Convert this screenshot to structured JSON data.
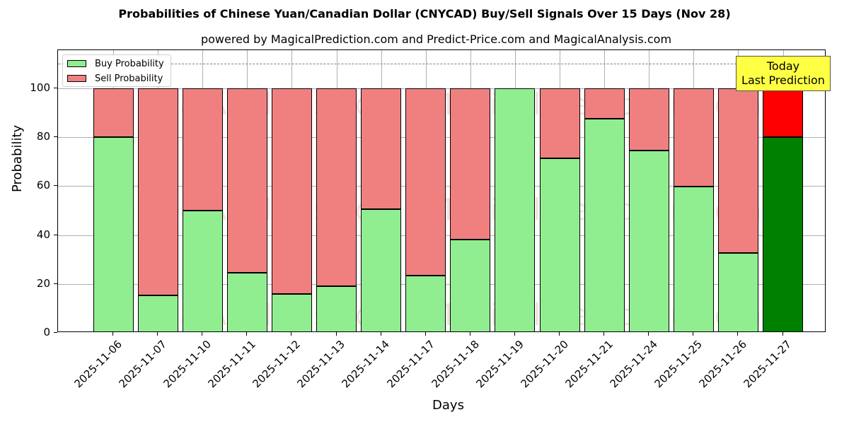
{
  "chart": {
    "title": "Probabilities of Chinese Yuan/Canadian Dollar (CNYCAD) Buy/Sell Signals Over 15 Days (Nov 28)",
    "subtitle": "powered by MagicalPrediction.com and Predict-Price.com and MagicalAnalysis.com",
    "xlabel": "Days",
    "ylabel": "Probability",
    "yticks": [
      "0",
      "20",
      "40",
      "60",
      "80",
      "100"
    ],
    "legend": {
      "buy": "Buy Probability",
      "sell": "Sell Probability"
    },
    "annotation": {
      "line1": "Today",
      "line2": "Last Prediction"
    },
    "watermarks": [
      "MagicalAnalysis.com",
      "MagicalPrediction.com"
    ]
  },
  "colors": {
    "buy": "#90ee90",
    "sell": "#f08080",
    "today_buy": "#008000",
    "today_sell": "#ff0000",
    "annotation_bg": "#ffff44"
  },
  "chart_data": {
    "type": "bar",
    "stacked": true,
    "title": "Probabilities of Chinese Yuan/Canadian Dollar (CNYCAD) Buy/Sell Signals Over 15 Days (Nov 28)",
    "subtitle": "powered by MagicalPrediction.com and Predict-Price.com and MagicalAnalysis.com",
    "xlabel": "Days",
    "ylabel": "Probability",
    "ylim": [
      0,
      115
    ],
    "yticks": [
      0,
      20,
      40,
      60,
      80,
      100
    ],
    "grid": true,
    "legend_position": "upper left",
    "reference_line": {
      "y": 110,
      "style": "dashed",
      "color": "#808080"
    },
    "annotations": [
      {
        "text": "Today\nLast Prediction",
        "x": "2025-11-27"
      }
    ],
    "categories": [
      "2025-11-06",
      "2025-11-07",
      "2025-11-10",
      "2025-11-11",
      "2025-11-12",
      "2025-11-13",
      "2025-11-14",
      "2025-11-17",
      "2025-11-18",
      "2025-11-19",
      "2025-11-20",
      "2025-11-21",
      "2025-11-24",
      "2025-11-25",
      "2025-11-26",
      "2025-11-27"
    ],
    "series": [
      {
        "name": "Buy Probability",
        "values": [
          80.1,
          15.4,
          49.9,
          24.7,
          16.0,
          19.0,
          50.7,
          23.5,
          38.2,
          100.0,
          71.3,
          87.7,
          74.7,
          59.9,
          32.8,
          80.0
        ]
      },
      {
        "name": "Sell Probability",
        "values": [
          19.9,
          84.6,
          50.1,
          75.3,
          84.0,
          81.0,
          49.3,
          76.5,
          61.8,
          0.0,
          28.7,
          12.3,
          25.3,
          40.1,
          67.2,
          20.0
        ]
      }
    ]
  }
}
